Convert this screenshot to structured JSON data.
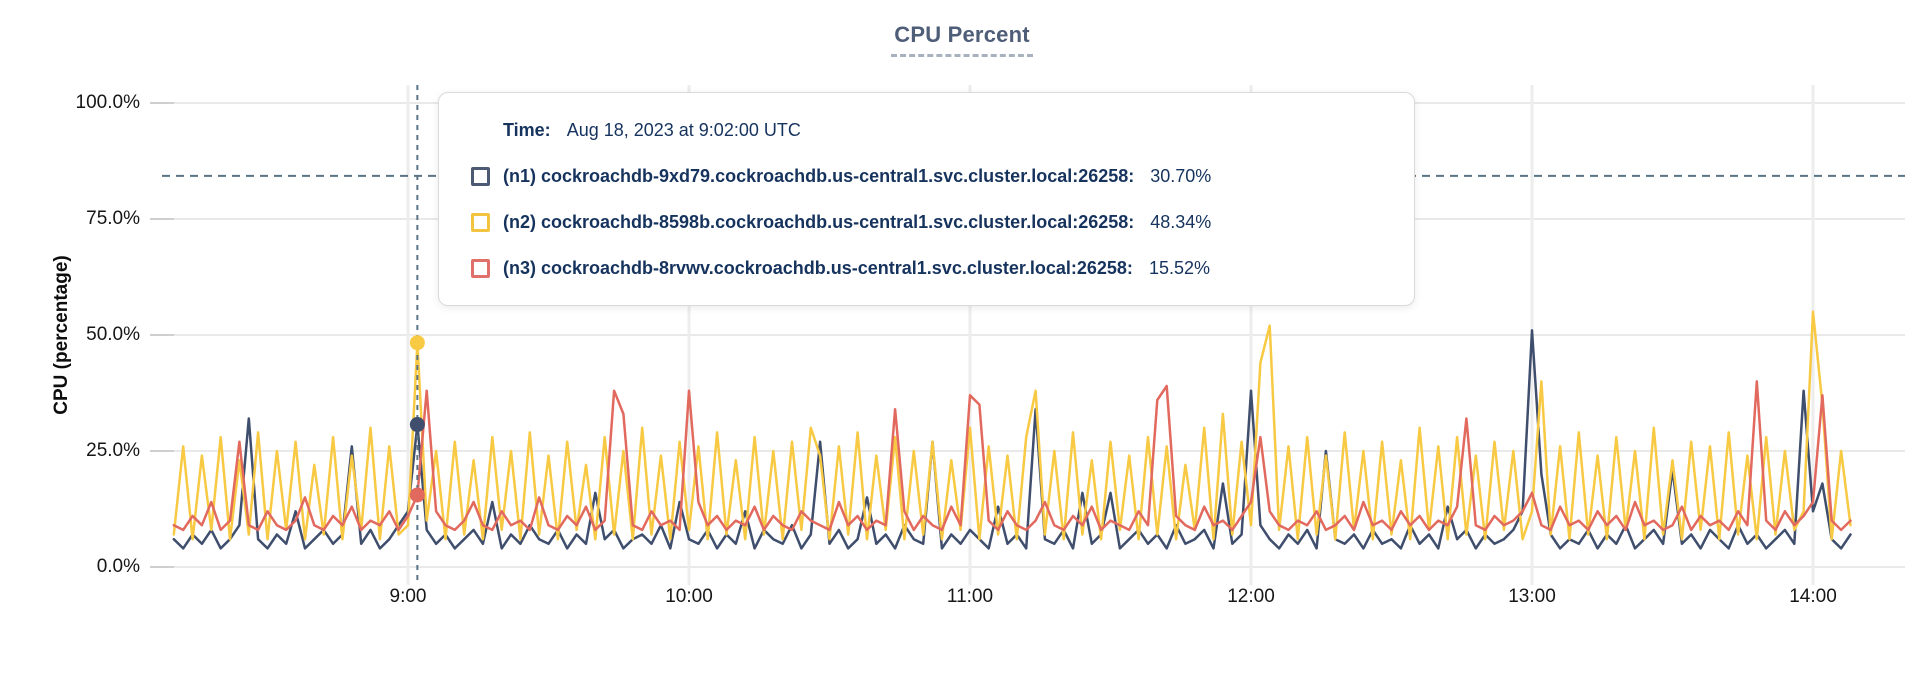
{
  "title": "CPU Percent",
  "tooltip": {
    "time_label": "Time:",
    "time_value": "Aug 18, 2023 at 9:02:00 UTC",
    "series": [
      {
        "label": "(n1) cockroachdb-9xd79.cockroachdb.us-central1.svc.cluster.local:26258:",
        "value": "30.70%",
        "color": "#4c5a74"
      },
      {
        "label": "(n2) cockroachdb-8598b.cockroachdb.us-central1.svc.cluster.local:26258:",
        "value": "48.34%",
        "color": "#f2c440"
      },
      {
        "label": "(n3) cockroachdb-8rvwv.cockroachdb.us-central1.svc.cluster.local:26258:",
        "value": "15.52%",
        "color": "#e0716a"
      }
    ]
  },
  "chart_data": {
    "type": "line",
    "title": "CPU Percent",
    "ylabel": "CPU (percentage)",
    "ylim": [
      0,
      100
    ],
    "grid": true,
    "y_tick_labels": [
      "100.0%",
      "75.0%",
      "50.0%",
      "25.0%",
      "0.0%"
    ],
    "x_ticks": [
      "9:00",
      "10:00",
      "11:00",
      "12:00",
      "13:00",
      "14:00"
    ],
    "x_start_time": "8:10",
    "x_end_time": "14:08",
    "x_step_minutes": 2,
    "threshold_dashed_percent": 84.3,
    "hover": {
      "time": "Aug 18, 2023 at 9:02:00 UTC",
      "index": 26,
      "values": {
        "n1": 30.7,
        "n2": 48.34,
        "n3": 15.52
      }
    },
    "series": [
      {
        "id": "n1",
        "name": "(n1) cockroachdb-9xd79.cockroachdb.us-central1.svc.cluster.local:26258",
        "color": "#3f4e6d",
        "values": [
          6,
          4,
          7,
          5,
          8,
          4,
          6,
          9,
          32,
          6,
          4,
          7,
          5,
          12,
          4,
          6,
          8,
          5,
          7,
          26,
          5,
          8,
          4,
          6,
          9,
          12,
          30.7,
          8,
          5,
          7,
          4,
          6,
          8,
          5,
          14,
          4,
          7,
          5,
          9,
          6,
          5,
          8,
          4,
          7,
          5,
          16,
          6,
          8,
          4,
          6,
          7,
          5,
          9,
          4,
          14,
          6,
          5,
          8,
          4,
          7,
          5,
          12,
          4,
          8,
          6,
          5,
          9,
          4,
          7,
          27,
          5,
          8,
          4,
          6,
          15,
          5,
          7,
          4,
          9,
          6,
          5,
          27,
          4,
          7,
          5,
          8,
          6,
          4,
          13,
          5,
          7,
          4,
          34,
          6,
          5,
          8,
          4,
          16,
          5,
          7,
          16,
          4,
          6,
          8,
          5,
          7,
          4,
          9,
          5,
          6,
          8,
          4,
          18,
          5,
          7,
          38,
          9,
          6,
          4,
          7,
          5,
          8,
          4,
          25,
          6,
          5,
          7,
          4,
          8,
          5,
          6,
          4,
          9,
          5,
          7,
          4,
          13,
          6,
          8,
          4,
          7,
          5,
          6,
          8,
          12,
          51,
          20,
          7,
          4,
          6,
          5,
          8,
          4,
          7,
          5,
          9,
          4,
          6,
          8,
          5,
          21,
          5,
          7,
          4,
          8,
          6,
          4,
          9,
          5,
          7,
          4,
          6,
          8,
          5,
          38,
          12,
          18,
          6,
          4,
          7
        ]
      },
      {
        "id": "n2",
        "name": "(n2) cockroachdb-8598b.cockroachdb.us-central1.svc.cluster.local:26258",
        "color": "#f8c943",
        "values": [
          7,
          26,
          6,
          24,
          8,
          28,
          6,
          23,
          7,
          29,
          6,
          25,
          8,
          27,
          6,
          22,
          7,
          28,
          6,
          24,
          8,
          30,
          6,
          26,
          7,
          9,
          48.34,
          10,
          25,
          6,
          27,
          7,
          23,
          6,
          28,
          8,
          25,
          6,
          29,
          7,
          24,
          6,
          27,
          8,
          22,
          6,
          28,
          7,
          25,
          6,
          30,
          7,
          24,
          6,
          27,
          8,
          26,
          6,
          29,
          7,
          23,
          6,
          28,
          7,
          25,
          6,
          27,
          8,
          30,
          24,
          6,
          26,
          7,
          29,
          6,
          24,
          8,
          28,
          6,
          25,
          7,
          27,
          6,
          23,
          8,
          30,
          6,
          26,
          7,
          24,
          6,
          28,
          38,
          7,
          25,
          6,
          29,
          7,
          23,
          6,
          27,
          8,
          24,
          6,
          28,
          7,
          26,
          6,
          22,
          8,
          30,
          6,
          33,
          7,
          27,
          9,
          44,
          52,
          8,
          26,
          6,
          28,
          7,
          24,
          6,
          29,
          8,
          25,
          6,
          27,
          7,
          23,
          6,
          30,
          8,
          26,
          6,
          28,
          7,
          24,
          6,
          27,
          8,
          25,
          6,
          12,
          40,
          7,
          26,
          6,
          29,
          7,
          24,
          6,
          28,
          8,
          25,
          6,
          30,
          7,
          23,
          6,
          27,
          8,
          26,
          6,
          29,
          7,
          24,
          6,
          28,
          7,
          25,
          8,
          12,
          55,
          35,
          6,
          25,
          9
        ]
      },
      {
        "id": "n3",
        "name": "(n3) cockroachdb-8rvwv.cockroachdb.us-central1.svc.cluster.local:26258",
        "color": "#e2695e",
        "values": [
          9,
          8,
          11,
          9,
          14,
          8,
          10,
          27,
          9,
          8,
          12,
          9,
          8,
          10,
          15,
          9,
          8,
          11,
          9,
          13,
          8,
          10,
          9,
          12,
          8,
          11,
          15.52,
          38,
          12,
          9,
          8,
          10,
          14,
          9,
          8,
          12,
          9,
          10,
          8,
          15,
          9,
          8,
          11,
          9,
          13,
          8,
          10,
          38,
          33,
          9,
          8,
          12,
          9,
          10,
          8,
          38,
          14,
          9,
          11,
          8,
          10,
          9,
          13,
          8,
          11,
          9,
          8,
          12,
          10,
          9,
          8,
          14,
          9,
          11,
          8,
          10,
          9,
          34,
          12,
          8,
          11,
          9,
          8,
          13,
          9,
          37,
          35,
          10,
          8,
          12,
          9,
          8,
          10,
          14,
          9,
          8,
          11,
          9,
          13,
          8,
          10,
          9,
          8,
          12,
          9,
          36,
          39,
          11,
          9,
          8,
          13,
          9,
          10,
          8,
          11,
          14,
          28,
          12,
          9,
          8,
          10,
          9,
          12,
          8,
          9,
          11,
          8,
          14,
          9,
          10,
          8,
          12,
          9,
          11,
          8,
          10,
          9,
          13,
          32,
          9,
          8,
          11,
          9,
          10,
          12,
          16,
          9,
          8,
          13,
          9,
          10,
          8,
          12,
          9,
          11,
          8,
          14,
          9,
          10,
          8,
          9,
          13,
          8,
          11,
          9,
          10,
          8,
          12,
          9,
          40,
          10,
          8,
          12,
          9,
          11,
          14,
          37,
          10,
          8,
          10
        ]
      }
    ]
  }
}
